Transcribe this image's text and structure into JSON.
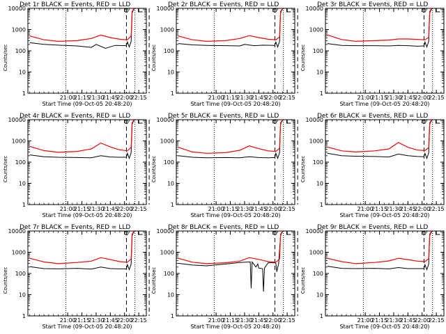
{
  "panel_titles": [
    "Det 1r BLACK = Events, RED = LLD",
    "Det 2r BLACK = Events, RED = LLD",
    "Det 3r BLACK = Events, RED = LLD",
    "Det 4r BLACK = Events, RED = LLD",
    "Det 5r BLACK = Events, RED = LLD",
    "Det 6r BLACK = Events, RED = LLD",
    "Det 7r BLACK = Events, RED = LLD",
    "Det 8r BLACK = Events, RED = LLD",
    "Det 9r BLACK = Events, RED = LLD"
  ],
  "ylabel": "Counts/sec",
  "xlabel": "Start Time (09-Oct-05 20:48:20)",
  "colors": {
    "events": "#000000",
    "lld": "#ff0000",
    "background": "#ffffff"
  },
  "chart_data": {
    "type": "line",
    "grid": "3x3",
    "y_scale": "log",
    "ylim": [
      1,
      10000
    ],
    "y_tick_labels": [
      "1",
      "10",
      "100",
      "1000",
      "10000"
    ],
    "x_tick_labels": [
      "21:00",
      "21:15",
      "21:30",
      "21:45",
      "22:00",
      "22:15"
    ],
    "dotted_vertical_markers": [
      "20:58",
      "22:11"
    ],
    "dashed_vertical_markers": [
      "22:02",
      "22:26"
    ],
    "series_names": [
      "Events",
      "LLD"
    ],
    "detectors": [
      {
        "lld": [
          [
            -40,
            500
          ],
          [
            -25,
            330
          ],
          [
            -10,
            280
          ],
          [
            10,
            300
          ],
          [
            25,
            380
          ],
          [
            35,
            550
          ],
          [
            45,
            420
          ],
          [
            55,
            350
          ],
          [
            63,
            330
          ],
          [
            67,
            500
          ],
          [
            68,
            7000
          ],
          [
            70,
            10000
          ]
        ],
        "events": [
          [
            -40,
            240
          ],
          [
            -25,
            200
          ],
          [
            -10,
            185
          ],
          [
            10,
            170
          ],
          [
            25,
            145
          ],
          [
            30,
            200
          ],
          [
            40,
            130
          ],
          [
            50,
            180
          ],
          [
            62,
            175
          ],
          [
            63,
            260
          ],
          [
            65,
            150
          ],
          [
            67,
            280
          ],
          [
            68,
            6000
          ],
          [
            70,
            10000
          ]
        ]
      },
      {
        "lld": [
          [
            -40,
            500
          ],
          [
            -25,
            330
          ],
          [
            -10,
            280
          ],
          [
            10,
            300
          ],
          [
            25,
            380
          ],
          [
            35,
            520
          ],
          [
            45,
            420
          ],
          [
            55,
            350
          ],
          [
            63,
            330
          ],
          [
            67,
            450
          ],
          [
            68,
            7000
          ],
          [
            70,
            10000
          ]
        ],
        "events": [
          [
            -40,
            220
          ],
          [
            -25,
            190
          ],
          [
            -10,
            180
          ],
          [
            10,
            175
          ],
          [
            25,
            170
          ],
          [
            30,
            200
          ],
          [
            40,
            175
          ],
          [
            50,
            185
          ],
          [
            62,
            180
          ],
          [
            63,
            260
          ],
          [
            65,
            150
          ],
          [
            67,
            280
          ],
          [
            68,
            6000
          ],
          [
            70,
            10000
          ]
        ]
      },
      {
        "lld": [
          [
            -40,
            560
          ],
          [
            -25,
            340
          ],
          [
            -10,
            280
          ],
          [
            10,
            300
          ],
          [
            25,
            320
          ],
          [
            35,
            360
          ],
          [
            45,
            360
          ],
          [
            55,
            345
          ],
          [
            63,
            330
          ],
          [
            67,
            430
          ],
          [
            68,
            7000
          ],
          [
            70,
            10000
          ]
        ],
        "events": [
          [
            -40,
            220
          ],
          [
            -25,
            180
          ],
          [
            -10,
            175
          ],
          [
            10,
            175
          ],
          [
            25,
            170
          ],
          [
            35,
            180
          ],
          [
            45,
            175
          ],
          [
            55,
            165
          ],
          [
            62,
            170
          ],
          [
            63,
            260
          ],
          [
            65,
            150
          ],
          [
            67,
            280
          ],
          [
            68,
            6000
          ],
          [
            70,
            10000
          ]
        ]
      },
      {
        "lld": [
          [
            -40,
            550
          ],
          [
            -25,
            350
          ],
          [
            -10,
            290
          ],
          [
            10,
            320
          ],
          [
            25,
            420
          ],
          [
            35,
            800
          ],
          [
            45,
            520
          ],
          [
            55,
            380
          ],
          [
            63,
            340
          ],
          [
            67,
            500
          ],
          [
            68,
            7000
          ],
          [
            70,
            10000
          ]
        ],
        "events": [
          [
            -40,
            220
          ],
          [
            -25,
            180
          ],
          [
            -10,
            170
          ],
          [
            10,
            165
          ],
          [
            25,
            160
          ],
          [
            35,
            200
          ],
          [
            45,
            175
          ],
          [
            55,
            170
          ],
          [
            62,
            170
          ],
          [
            63,
            260
          ],
          [
            65,
            150
          ],
          [
            67,
            280
          ],
          [
            68,
            6000
          ],
          [
            70,
            10000
          ]
        ]
      },
      {
        "lld": [
          [
            -40,
            500
          ],
          [
            -25,
            300
          ],
          [
            -10,
            260
          ],
          [
            10,
            280
          ],
          [
            25,
            360
          ],
          [
            35,
            580
          ],
          [
            45,
            430
          ],
          [
            55,
            340
          ],
          [
            63,
            320
          ],
          [
            67,
            450
          ],
          [
            68,
            7000
          ],
          [
            70,
            10000
          ]
        ],
        "events": [
          [
            -40,
            200
          ],
          [
            -25,
            170
          ],
          [
            -10,
            160
          ],
          [
            10,
            165
          ],
          [
            25,
            160
          ],
          [
            35,
            180
          ],
          [
            45,
            165
          ],
          [
            55,
            160
          ],
          [
            62,
            165
          ],
          [
            63,
            260
          ],
          [
            65,
            150
          ],
          [
            67,
            280
          ],
          [
            68,
            6000
          ],
          [
            70,
            10000
          ]
        ]
      },
      {
        "lld": [
          [
            -40,
            520
          ],
          [
            -25,
            340
          ],
          [
            -10,
            300
          ],
          [
            10,
            340
          ],
          [
            25,
            420
          ],
          [
            35,
            850
          ],
          [
            45,
            500
          ],
          [
            55,
            370
          ],
          [
            63,
            350
          ],
          [
            67,
            480
          ],
          [
            68,
            7000
          ],
          [
            70,
            10000
          ]
        ],
        "events": [
          [
            -40,
            260
          ],
          [
            -25,
            200
          ],
          [
            -10,
            190
          ],
          [
            10,
            185
          ],
          [
            25,
            175
          ],
          [
            35,
            240
          ],
          [
            45,
            200
          ],
          [
            55,
            185
          ],
          [
            62,
            180
          ],
          [
            63,
            260
          ],
          [
            65,
            150
          ],
          [
            67,
            280
          ],
          [
            68,
            6000
          ],
          [
            70,
            10000
          ]
        ]
      },
      {
        "lld": [
          [
            -40,
            520
          ],
          [
            -25,
            350
          ],
          [
            -10,
            290
          ],
          [
            10,
            330
          ],
          [
            25,
            380
          ],
          [
            35,
            560
          ],
          [
            45,
            450
          ],
          [
            55,
            360
          ],
          [
            63,
            340
          ],
          [
            67,
            480
          ],
          [
            68,
            7000
          ],
          [
            70,
            10000
          ]
        ],
        "events": [
          [
            -40,
            210
          ],
          [
            -25,
            170
          ],
          [
            -10,
            165
          ],
          [
            10,
            175
          ],
          [
            25,
            160
          ],
          [
            35,
            200
          ],
          [
            45,
            170
          ],
          [
            55,
            165
          ],
          [
            62,
            165
          ],
          [
            63,
            260
          ],
          [
            65,
            150
          ],
          [
            67,
            280
          ],
          [
            68,
            6000
          ],
          [
            70,
            10000
          ]
        ]
      },
      {
        "lld": [
          [
            -40,
            520
          ],
          [
            -25,
            340
          ],
          [
            -10,
            290
          ],
          [
            10,
            320
          ],
          [
            25,
            380
          ],
          [
            35,
            560
          ],
          [
            45,
            460
          ],
          [
            55,
            360
          ],
          [
            63,
            340
          ],
          [
            67,
            480
          ],
          [
            68,
            7000
          ],
          [
            70,
            10000
          ]
        ],
        "events": [
          [
            -40,
            300
          ],
          [
            -25,
            250
          ],
          [
            -10,
            230
          ],
          [
            10,
            280
          ],
          [
            25,
            330
          ],
          [
            36,
            350
          ],
          [
            37,
            20
          ],
          [
            38,
            350
          ],
          [
            42,
            200
          ],
          [
            44,
            280
          ],
          [
            45,
            180
          ],
          [
            49,
            170
          ],
          [
            50,
            14
          ],
          [
            51,
            180
          ],
          [
            55,
            320
          ],
          [
            62,
            320
          ],
          [
            63,
            300
          ],
          [
            64,
            120
          ],
          [
            66,
            300
          ],
          [
            68,
            6000
          ],
          [
            70,
            10000
          ]
        ]
      },
      {
        "lld": [
          [
            -40,
            520
          ],
          [
            -25,
            360
          ],
          [
            -10,
            290
          ],
          [
            10,
            330
          ],
          [
            25,
            390
          ],
          [
            35,
            520
          ],
          [
            45,
            450
          ],
          [
            55,
            380
          ],
          [
            63,
            360
          ],
          [
            67,
            500
          ],
          [
            68,
            7000
          ],
          [
            70,
            10000
          ]
        ],
        "events": [
          [
            -40,
            220
          ],
          [
            -25,
            175
          ],
          [
            -10,
            170
          ],
          [
            10,
            175
          ],
          [
            25,
            165
          ],
          [
            35,
            190
          ],
          [
            45,
            170
          ],
          [
            55,
            170
          ],
          [
            62,
            170
          ],
          [
            63,
            260
          ],
          [
            65,
            150
          ],
          [
            67,
            280
          ],
          [
            68,
            6000
          ],
          [
            70,
            10000
          ]
        ]
      }
    ]
  }
}
